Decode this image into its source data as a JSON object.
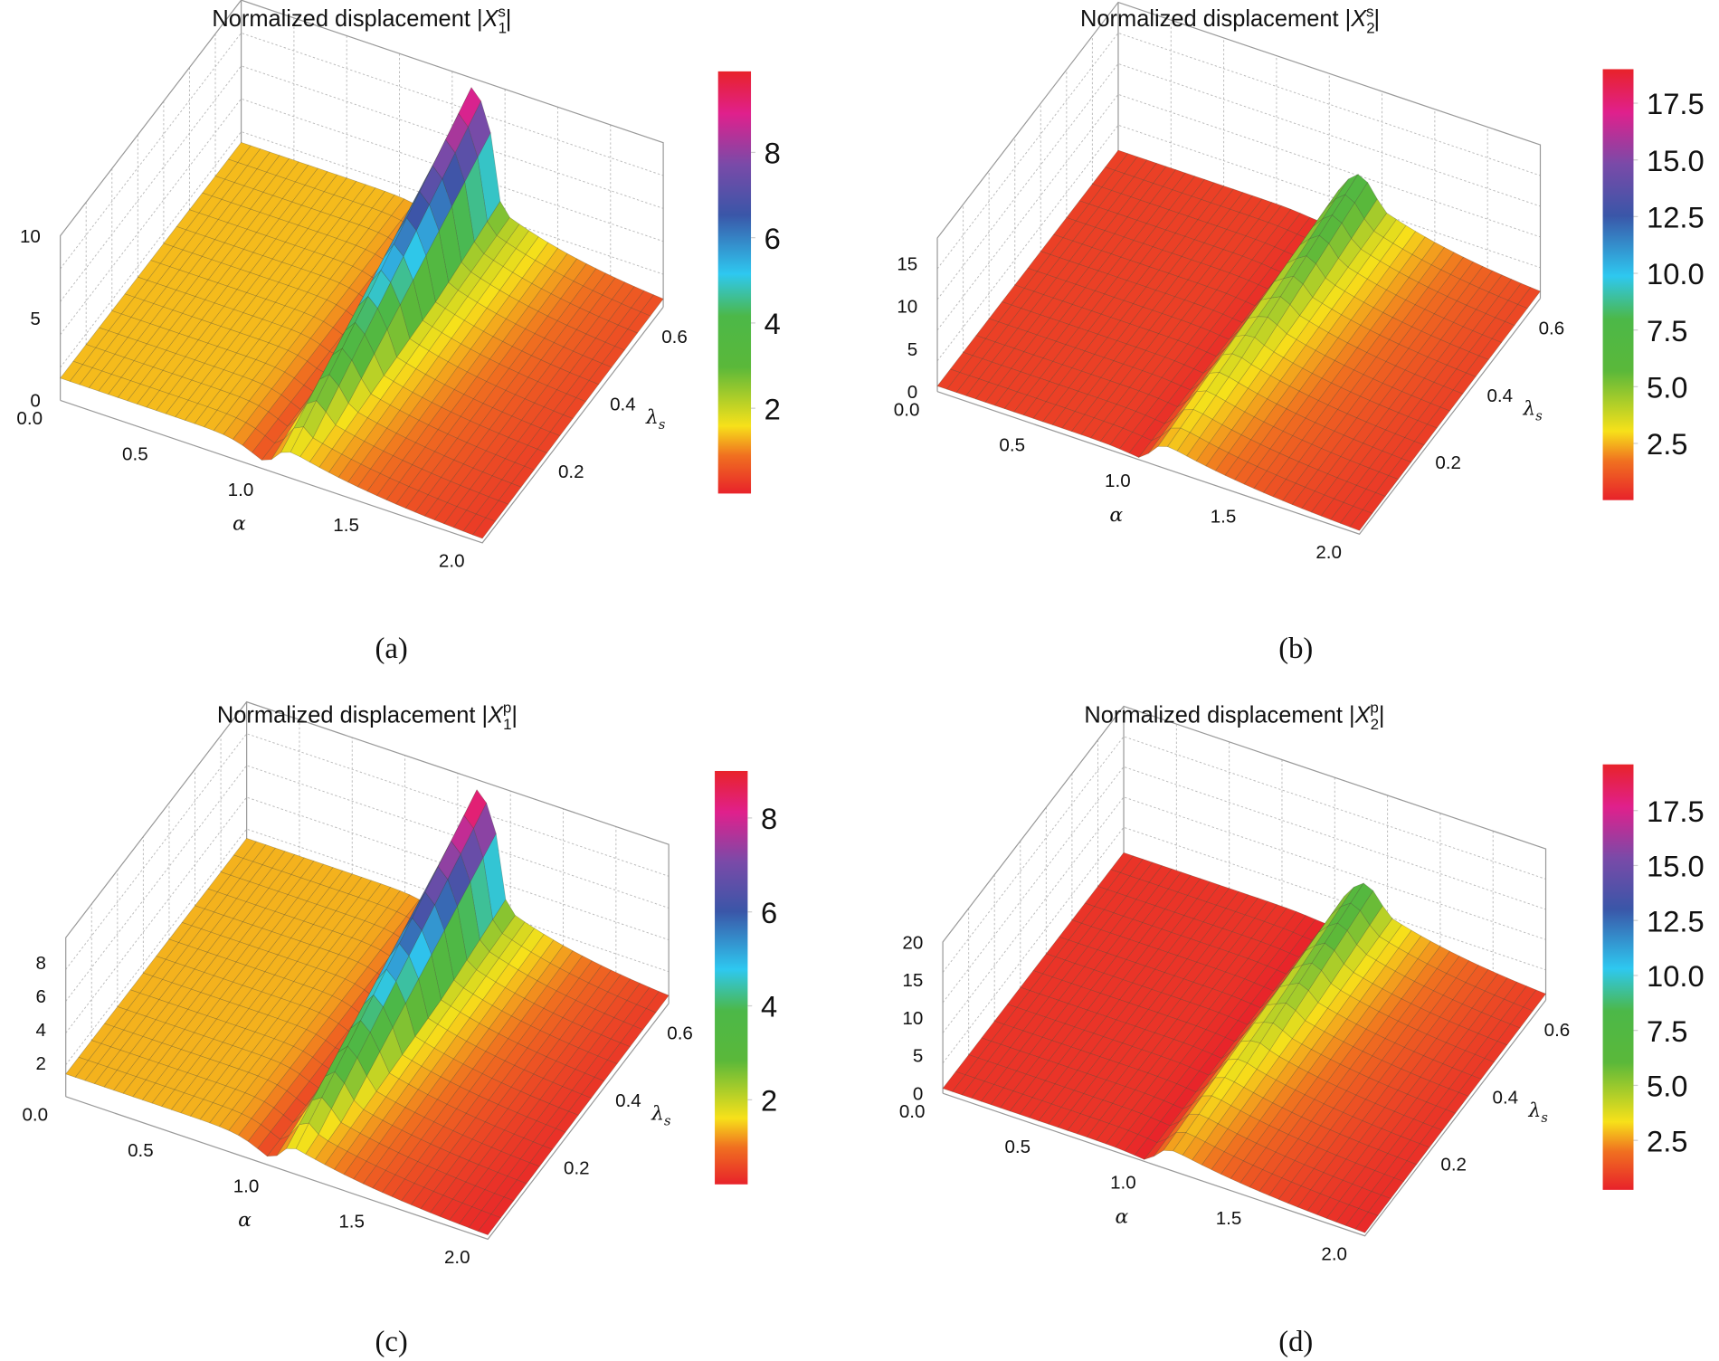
{
  "chart_data": [
    {
      "type": "surface",
      "panel": "(a)",
      "title": {
        "prefix": "Normalized displacement |",
        "var": "X",
        "sub": "1",
        "sup": "s",
        "suffix": "|"
      },
      "xlabel": "α",
      "ylabel": {
        "main": "λ",
        "sub": "s"
      },
      "x_ticks": [
        "0.0",
        "0.5",
        "1.0",
        "1.5",
        "2.0"
      ],
      "y_ticks": [
        "0.2",
        "0.4",
        "0.6"
      ],
      "z_ticks": [
        "0",
        "5",
        "10"
      ],
      "xlim": [
        0,
        2
      ],
      "ylim": [
        0,
        0.7
      ],
      "zlim": [
        0,
        10
      ],
      "colorbar": {
        "ticks": [
          "2",
          "4",
          "6",
          "8"
        ],
        "range": [
          0,
          9.9
        ]
      },
      "surface": {
        "base": 1.3,
        "ridge_alpha": 1.08,
        "ridge_peak": 9,
        "tail": 3.2
      }
    },
    {
      "type": "surface",
      "panel": "(b)",
      "title": {
        "prefix": "Normalized displacement |",
        "var": "X",
        "sub": "2",
        "sup": "s",
        "suffix": "|"
      },
      "xlabel": "α",
      "ylabel": {
        "main": "λ",
        "sub": "s"
      },
      "x_ticks": [
        "0.0",
        "0.5",
        "1.0",
        "1.5",
        "2.0"
      ],
      "y_ticks": [
        "0.2",
        "0.4",
        "0.6"
      ],
      "z_ticks": [
        "0",
        "5",
        "10",
        "15"
      ],
      "xlim": [
        0,
        2
      ],
      "ylim": [
        0,
        0.7
      ],
      "zlim": [
        0,
        18
      ],
      "colorbar": {
        "ticks": [
          "2.5",
          "5.0",
          "7.5",
          "10.0",
          "12.5",
          "15.0",
          "17.5"
        ],
        "range": [
          0,
          19
        ]
      },
      "surface": {
        "base": 0.6,
        "ridge_alpha": 1.12,
        "ridge_peak": 7,
        "tail": 5.5
      }
    },
    {
      "type": "surface",
      "panel": "(c)",
      "title": {
        "prefix": "Normalized displacement |",
        "var": "X",
        "sub": "1",
        "sup": "p",
        "suffix": "|"
      },
      "xlabel": "α",
      "ylabel": {
        "main": "λ",
        "sub": "s"
      },
      "x_ticks": [
        "0.0",
        "0.5",
        "1.0",
        "1.5",
        "2.0"
      ],
      "y_ticks": [
        "0.2",
        "0.4",
        "0.6"
      ],
      "z_ticks": [
        "2",
        "4",
        "6",
        "8"
      ],
      "xlim": [
        0,
        2
      ],
      "ylim": [
        0,
        0.7
      ],
      "zlim": [
        0,
        9.5
      ],
      "colorbar": {
        "ticks": [
          "2",
          "4",
          "6",
          "8"
        ],
        "range": [
          0.2,
          9.0
        ]
      },
      "surface": {
        "base": 1.3,
        "ridge_alpha": 1.08,
        "ridge_peak": 8.5,
        "tail": 3.0
      }
    },
    {
      "type": "surface",
      "panel": "(d)",
      "title": {
        "prefix": "Normalized displacement |",
        "var": "X",
        "sub": "2",
        "sup": "p",
        "suffix": "|"
      },
      "xlabel": "α",
      "ylabel": {
        "main": "λ",
        "sub": "s"
      },
      "x_ticks": [
        "0.0",
        "0.5",
        "1.0",
        "1.5",
        "2.0"
      ],
      "y_ticks": [
        "0.2",
        "0.4",
        "0.6"
      ],
      "z_ticks": [
        "0",
        "5",
        "10",
        "15",
        "20"
      ],
      "xlim": [
        0,
        2
      ],
      "ylim": [
        0,
        0.7
      ],
      "zlim": [
        0,
        20
      ],
      "colorbar": {
        "ticks": [
          "2.5",
          "5.0",
          "7.5",
          "10.0",
          "12.5",
          "15.0",
          "17.5"
        ],
        "range": [
          0.25,
          19.6
        ]
      },
      "surface": {
        "base": 0.6,
        "ridge_alpha": 1.12,
        "ridge_peak": 7,
        "tail": 5.5
      }
    }
  ],
  "colormap": [
    "#e8222a",
    "#f07020",
    "#f7e11a",
    "#5ab83a",
    "#4cb848",
    "#2ec8f0",
    "#3a56a8",
    "#7a4aa8",
    "#e0208c",
    "#e8222a"
  ]
}
